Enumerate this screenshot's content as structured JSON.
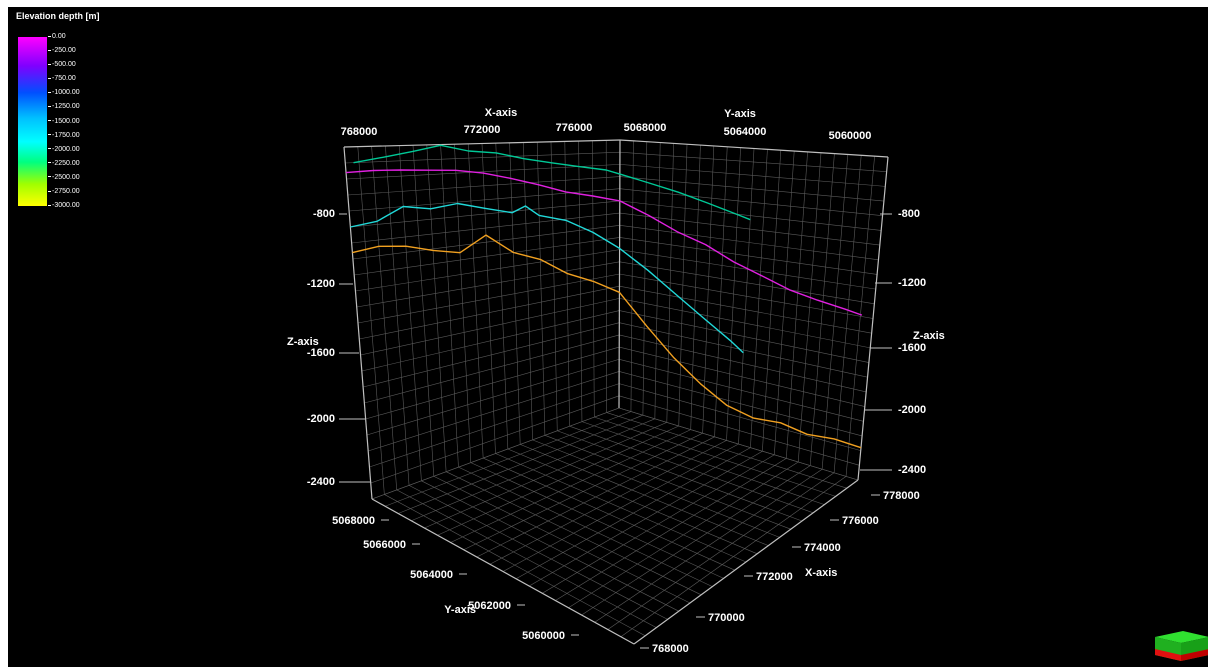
{
  "legend": {
    "title": "Elevation depth [m]",
    "labels": [
      "0.00",
      "-250.00",
      "-500.00",
      "-750.00",
      "-1000.00",
      "-1250.00",
      "-1500.00",
      "-1750.00",
      "-2000.00",
      "-2250.00",
      "-2500.00",
      "-2750.00",
      "-3000.00"
    ]
  },
  "colors": {
    "background": "#000000",
    "grid": "#5a5a5a",
    "frame": "#bfbfbf",
    "series": [
      "#00c896",
      "#e020e0",
      "#20d8d8",
      "#f0a020"
    ]
  },
  "chart_data": {
    "type": "line",
    "projection": "3d",
    "x_axis": {
      "label": "X-axis",
      "range": [
        768000,
        778000
      ],
      "ticks": [
        "768000",
        "770000",
        "772000",
        "774000",
        "776000",
        "778000"
      ],
      "back_ticks": [
        "768000",
        "772000",
        "776000"
      ]
    },
    "y_axis": {
      "label": "Y-axis",
      "range": [
        5059000,
        5068000
      ],
      "ticks": [
        "5060000",
        "5062000",
        "5064000",
        "5066000",
        "5068000"
      ],
      "back_ticks": [
        "5068000",
        "5064000",
        "5060000"
      ]
    },
    "z_axis": {
      "label": "Z-axis",
      "range": [
        -2600,
        -400
      ],
      "ticks": [
        "-800",
        "-1200",
        "-1600",
        "-2000",
        "-2400"
      ]
    },
    "grid": true,
    "series": [
      {
        "color": "#00c896",
        "points": [
          [
            768300,
            5068000,
            -500
          ],
          [
            769500,
            5068000,
            -470
          ],
          [
            770500,
            5068000,
            -440
          ],
          [
            771500,
            5068000,
            -405
          ],
          [
            772500,
            5068000,
            -450
          ],
          [
            773500,
            5068000,
            -470
          ],
          [
            774500,
            5068000,
            -520
          ],
          [
            775500,
            5068000,
            -560
          ],
          [
            776500,
            5068000,
            -600
          ],
          [
            777500,
            5068000,
            -640
          ],
          [
            778000,
            5068000,
            -680
          ],
          [
            778000,
            5067000,
            -730
          ],
          [
            778000,
            5066000,
            -780
          ],
          [
            778000,
            5065000,
            -840
          ],
          [
            778000,
            5064000,
            -900
          ],
          [
            778000,
            5063500,
            -930
          ]
        ]
      },
      {
        "color": "#e020e0",
        "points": [
          [
            768000,
            5068000,
            -560
          ],
          [
            769000,
            5068000,
            -555
          ],
          [
            770000,
            5068000,
            -560
          ],
          [
            771000,
            5068000,
            -570
          ],
          [
            772000,
            5068000,
            -580
          ],
          [
            773000,
            5068000,
            -610
          ],
          [
            774000,
            5068000,
            -660
          ],
          [
            775000,
            5068000,
            -720
          ],
          [
            776000,
            5068000,
            -790
          ],
          [
            777000,
            5068000,
            -840
          ],
          [
            778000,
            5068000,
            -900
          ],
          [
            778000,
            5067000,
            -990
          ],
          [
            778000,
            5066000,
            -1090
          ],
          [
            778000,
            5065000,
            -1160
          ],
          [
            778000,
            5064000,
            -1260
          ],
          [
            778000,
            5063000,
            -1330
          ],
          [
            778000,
            5062000,
            -1400
          ],
          [
            778000,
            5061000,
            -1440
          ],
          [
            778000,
            5060000,
            -1470
          ],
          [
            778000,
            5059400,
            -1490
          ]
        ]
      },
      {
        "color": "#20d8d8",
        "points": [
          [
            768000,
            5068000,
            -900
          ],
          [
            769000,
            5068000,
            -880
          ],
          [
            770000,
            5068000,
            -800
          ],
          [
            771000,
            5068000,
            -830
          ],
          [
            772000,
            5068000,
            -810
          ],
          [
            773000,
            5068000,
            -860
          ],
          [
            774000,
            5068000,
            -910
          ],
          [
            774500,
            5068000,
            -870
          ],
          [
            775000,
            5068000,
            -950
          ],
          [
            776000,
            5068000,
            -1010
          ],
          [
            777000,
            5068000,
            -1130
          ],
          [
            778000,
            5068000,
            -1290
          ],
          [
            778000,
            5067000,
            -1430
          ],
          [
            778000,
            5066000,
            -1580
          ],
          [
            778000,
            5065000,
            -1720
          ],
          [
            778000,
            5064000,
            -1850
          ],
          [
            778000,
            5063500,
            -1920
          ]
        ]
      },
      {
        "color": "#f0a020",
        "points": [
          [
            768000,
            5068000,
            -1060
          ],
          [
            769000,
            5068000,
            -1040
          ],
          [
            770000,
            5068000,
            -1060
          ],
          [
            771000,
            5068000,
            -1110
          ],
          [
            772000,
            5068000,
            -1150
          ],
          [
            773000,
            5068000,
            -1050
          ],
          [
            774000,
            5068000,
            -1200
          ],
          [
            775000,
            5068000,
            -1280
          ],
          [
            776000,
            5068000,
            -1420
          ],
          [
            777000,
            5068000,
            -1520
          ],
          [
            778000,
            5068000,
            -1650
          ],
          [
            778000,
            5067000,
            -1880
          ],
          [
            778000,
            5066000,
            -2080
          ],
          [
            778000,
            5065000,
            -2230
          ],
          [
            778000,
            5064000,
            -2340
          ],
          [
            778000,
            5063000,
            -2380
          ],
          [
            778000,
            5062000,
            -2360
          ],
          [
            778000,
            5061000,
            -2390
          ],
          [
            778000,
            5060000,
            -2370
          ],
          [
            778000,
            5059000,
            -2380
          ]
        ]
      }
    ]
  }
}
